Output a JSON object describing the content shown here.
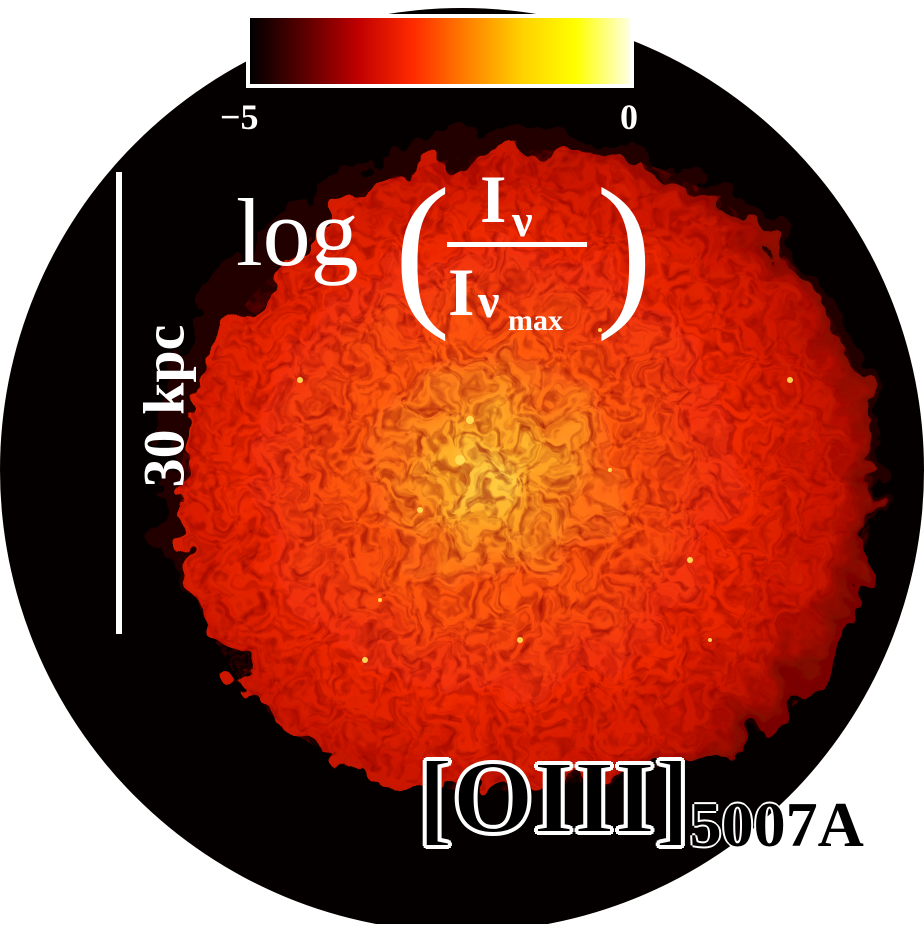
{
  "image": {
    "colorbar": {
      "colormap": "hot",
      "min_label": "−5",
      "max_label": "0",
      "colors": [
        "#000000",
        "#5a0000",
        "#c00000",
        "#ff2a00",
        "#ff8000",
        "#ffd000",
        "#ffff00",
        "#ffffe0"
      ]
    },
    "colorbar_title": {
      "prefix": "log",
      "numerator": "I",
      "numerator_sub": "ν",
      "denominator": "I",
      "denominator_sub": "ν",
      "denominator_subsub": "max"
    },
    "scale_bar": {
      "label": "30 kpc"
    },
    "line_label": {
      "name": "[OIII]",
      "wavelength": "5007A"
    },
    "colors": {
      "background": "#ffffff",
      "field": "#050000",
      "text": "#ffffff"
    }
  }
}
